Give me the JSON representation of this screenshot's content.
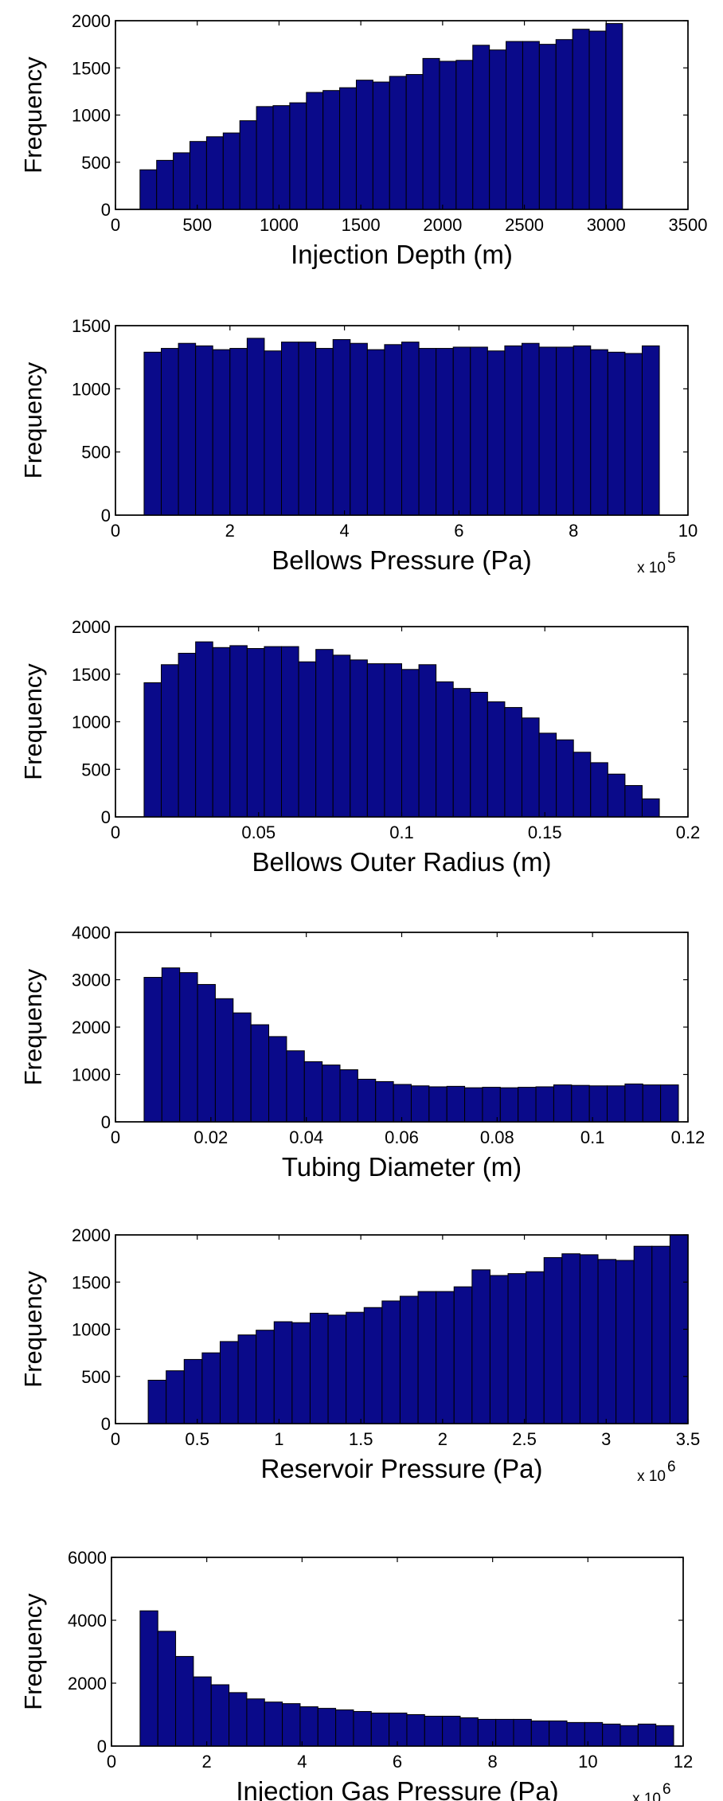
{
  "colors": {
    "bar_fill": "#0a0a8a",
    "bar_edge": "#000000",
    "axes": "#000000",
    "background": "#ffffff"
  },
  "chart_data": [
    {
      "type": "bar",
      "title": "",
      "xlabel": "Injection Depth (m)",
      "ylabel": "Frequency",
      "x_multiplier": "",
      "xlim": [
        0,
        3500
      ],
      "ylim": [
        0,
        2000
      ],
      "xticks": [
        "0",
        "500",
        "1000",
        "1500",
        "2000",
        "2500",
        "3000",
        "3500"
      ],
      "yticks": [
        "0",
        "500",
        "1000",
        "1500",
        "2000"
      ],
      "bin_start": 150,
      "bin_end": 3100,
      "values": [
        420,
        520,
        600,
        720,
        770,
        810,
        940,
        1090,
        1100,
        1130,
        1240,
        1260,
        1290,
        1370,
        1350,
        1410,
        1430,
        1600,
        1570,
        1580,
        1740,
        1690,
        1780,
        1780,
        1750,
        1800,
        1910,
        1890,
        1970
      ]
    },
    {
      "type": "bar",
      "title": "",
      "xlabel": "Bellows Pressure (Pa)",
      "ylabel": "Frequency",
      "x_multiplier": "x 10",
      "x_multiplier_exp": "5",
      "xlim": [
        0,
        10
      ],
      "ylim": [
        0,
        1500
      ],
      "xticks": [
        "0",
        "2",
        "4",
        "6",
        "8",
        "10"
      ],
      "yticks": [
        "0",
        "500",
        "1000",
        "1500"
      ],
      "bin_start": 0.5,
      "bin_end": 9.5,
      "values": [
        1290,
        1320,
        1360,
        1340,
        1310,
        1320,
        1400,
        1300,
        1370,
        1370,
        1320,
        1390,
        1360,
        1310,
        1350,
        1370,
        1320,
        1320,
        1330,
        1330,
        1300,
        1340,
        1360,
        1330,
        1330,
        1340,
        1310,
        1290,
        1280,
        1340
      ]
    },
    {
      "type": "bar",
      "title": "",
      "xlabel": "Bellows Outer Radius (m)",
      "ylabel": "Frequency",
      "x_multiplier": "",
      "xlim": [
        0,
        0.2
      ],
      "ylim": [
        0,
        2000
      ],
      "xticks": [
        "0",
        "0.05",
        "0.1",
        "0.15",
        "0.2"
      ],
      "yticks": [
        "0",
        "500",
        "1000",
        "1500",
        "2000"
      ],
      "bin_start": 0.01,
      "bin_end": 0.19,
      "values": [
        1410,
        1600,
        1720,
        1840,
        1780,
        1800,
        1770,
        1790,
        1790,
        1630,
        1760,
        1700,
        1650,
        1610,
        1610,
        1550,
        1600,
        1420,
        1350,
        1310,
        1210,
        1150,
        1040,
        880,
        810,
        680,
        570,
        450,
        330,
        190
      ]
    },
    {
      "type": "bar",
      "title": "",
      "xlabel": "Tubing Diameter (m)",
      "ylabel": "Frequency",
      "x_multiplier": "",
      "xlim": [
        0,
        0.12
      ],
      "ylim": [
        0,
        4000
      ],
      "xticks": [
        "0",
        "0.02",
        "0.04",
        "0.06",
        "0.08",
        "0.1",
        "0.12"
      ],
      "yticks": [
        "0",
        "1000",
        "2000",
        "3000",
        "4000"
      ],
      "bin_start": 0.006,
      "bin_end": 0.118,
      "values": [
        3050,
        3250,
        3150,
        2900,
        2600,
        2300,
        2050,
        1800,
        1500,
        1270,
        1200,
        1100,
        900,
        850,
        790,
        760,
        740,
        750,
        720,
        730,
        720,
        730,
        740,
        780,
        770,
        760,
        760,
        800,
        780,
        780
      ]
    },
    {
      "type": "bar",
      "title": "",
      "xlabel": "Reservoir Pressure (Pa)",
      "ylabel": "Frequency",
      "x_multiplier": "x 10",
      "x_multiplier_exp": "6",
      "xlim": [
        0,
        3.5
      ],
      "ylim": [
        0,
        2000
      ],
      "xticks": [
        "0",
        "0.5",
        "1",
        "1.5",
        "2",
        "2.5",
        "3",
        "3.5"
      ],
      "yticks": [
        "0",
        "500",
        "1000",
        "1500",
        "2000"
      ],
      "bin_start": 0.2,
      "bin_end": 3.5,
      "values": [
        460,
        560,
        680,
        750,
        870,
        940,
        990,
        1080,
        1070,
        1170,
        1150,
        1180,
        1230,
        1300,
        1350,
        1400,
        1400,
        1450,
        1630,
        1570,
        1590,
        1610,
        1760,
        1800,
        1790,
        1740,
        1730,
        1880,
        1880,
        2000
      ]
    },
    {
      "type": "bar",
      "title": "",
      "xlabel": "Injection Gas Pressure (Pa)",
      "ylabel": "Frequency",
      "x_multiplier": "x 10",
      "x_multiplier_exp": "6",
      "xlim": [
        0,
        12
      ],
      "ylim": [
        0,
        6000
      ],
      "xticks": [
        "0",
        "2",
        "4",
        "6",
        "8",
        "10",
        "12"
      ],
      "yticks": [
        "0",
        "2000",
        "4000",
        "6000"
      ],
      "bin_start": 0.6,
      "bin_end": 11.8,
      "values": [
        4300,
        3650,
        2850,
        2200,
        1950,
        1700,
        1500,
        1400,
        1350,
        1250,
        1200,
        1150,
        1100,
        1050,
        1050,
        1000,
        950,
        950,
        900,
        850,
        850,
        850,
        800,
        800,
        750,
        750,
        700,
        650,
        700,
        650
      ]
    }
  ]
}
